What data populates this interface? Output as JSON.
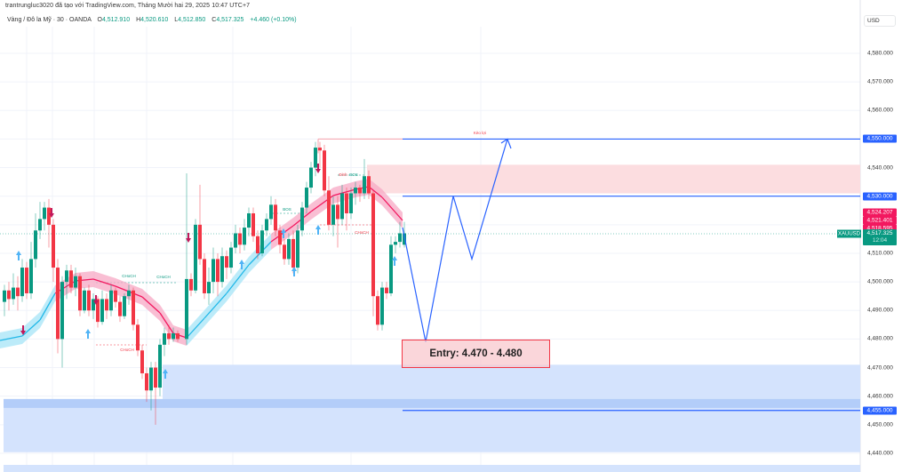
{
  "header": {
    "credit": "trantrungluc3020 đã tạo với TradingView.com, Tháng Mười hai 29, 2025 10:47 UTC+7",
    "symbol_desc": "Vàng / Đô la Mỹ · 30 · OANDA",
    "ohlc": {
      "o_label": "O",
      "o": "4,512.910",
      "h_label": "H",
      "h": "4,520.610",
      "l_label": "L",
      "l": "4,512.850",
      "c_label": "C",
      "c": "4,517.325",
      "change": "+4.460 (+0.10%)"
    }
  },
  "price_axis": {
    "unit": "USD",
    "ticks": [
      {
        "label": "4,580.000",
        "price": 4580
      },
      {
        "label": "4,570.000",
        "price": 4570
      },
      {
        "label": "4,560.000",
        "price": 4560
      },
      {
        "label": "4,540.000",
        "price": 4540
      },
      {
        "label": "4,510.000",
        "price": 4510
      },
      {
        "label": "4,500.000",
        "price": 4500
      },
      {
        "label": "4,490.000",
        "price": 4490
      },
      {
        "label": "4,480.000",
        "price": 4480
      },
      {
        "label": "4,470.000",
        "price": 4470
      },
      {
        "label": "4,460.000",
        "price": 4460
      },
      {
        "label": "4,450.000",
        "price": 4450
      },
      {
        "label": "4,440.000",
        "price": 4440
      }
    ],
    "tags": [
      {
        "label": "4,550.000",
        "price": 4550,
        "color": "blue"
      },
      {
        "label": "4,530.000",
        "price": 4530,
        "color": "blue"
      },
      {
        "label": "4,524.207",
        "price": 4524.207,
        "color": "pink"
      },
      {
        "label": "4,521.401",
        "price": 4521.401,
        "color": "pink"
      },
      {
        "label": "4,518.595",
        "price": 4518.595,
        "color": "pink"
      },
      {
        "label": "4,517.230",
        "price": 4515.3,
        "color": "red"
      },
      {
        "label": "4,455.000",
        "price": 4455,
        "color": "blue"
      }
    ],
    "last_price": {
      "symbol": "XAUUSD",
      "price": "4,517.325",
      "countdown": "12:04"
    }
  },
  "annotations": {
    "entry_text": "Entry: 4.470 - 4.480",
    "target_label": "Kèo lợi",
    "choch_labels": [
      "CHoCH",
      "CHoCH",
      "CHoCH",
      "CHoCH"
    ],
    "bos_labels": [
      "BOS",
      "BOS",
      "BOS"
    ],
    "high_label": "Đỉnh"
  },
  "colors": {
    "up": "#089981",
    "down": "#f23645",
    "line_blue": "#2962ff",
    "supply_zone": "#fcdde0",
    "demand_zone": "#d4e3fd",
    "demand_core": "#b3cdf9",
    "ribbon_pink": "#f7a8c4",
    "ribbon_cyan": "#a6e4f7"
  },
  "chart_data": {
    "type": "candlestick",
    "symbol": "XAUUSD",
    "timeframe": "30",
    "ylim": [
      4440,
      4585
    ],
    "levels": {
      "target_high": 4550,
      "resistance": 4530,
      "support_line": 4455
    },
    "zones": {
      "supply": [
        4531,
        4541
      ],
      "demand": [
        4441,
        4471
      ],
      "demand_core": [
        4456,
        4459
      ],
      "entry": [
        4470,
        4480
      ]
    },
    "projected_path": [
      {
        "x": 453,
        "price": 4519
      },
      {
        "x": 479,
        "price": 4479
      },
      {
        "x": 510,
        "price": 4530
      },
      {
        "x": 531,
        "price": 4508
      },
      {
        "x": 571,
        "price": 4550
      }
    ]
  }
}
